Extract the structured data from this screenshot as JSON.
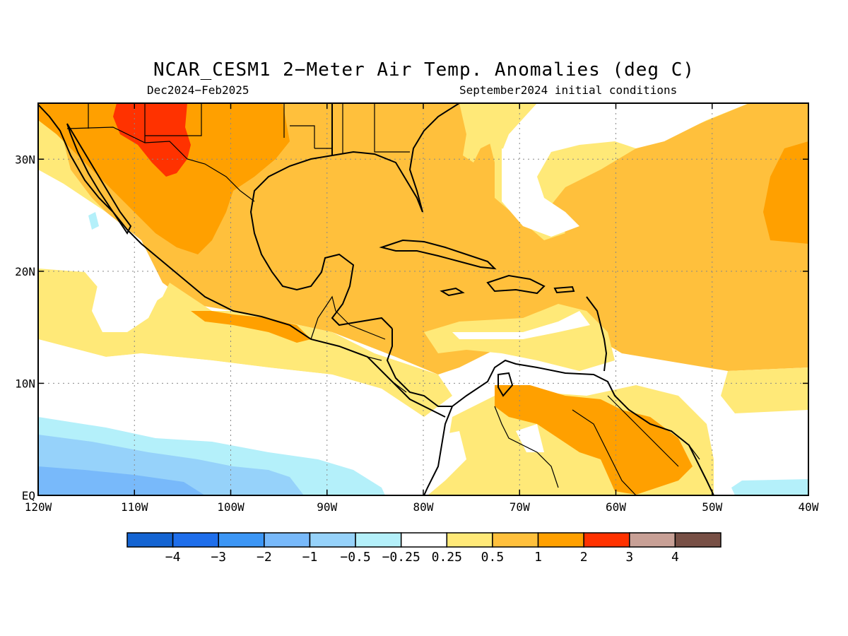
{
  "title": "NCAR_CESM1 2−Meter Air Temp. Anomalies (deg C)",
  "subtitle_left": "Dec2024−Feb2025",
  "subtitle_right": "September2024 initial conditions",
  "map": {
    "lon_range": [
      -120,
      -40
    ],
    "lat_range": [
      0,
      35
    ],
    "grid": true,
    "lat_ticks": [
      {
        "value": 30,
        "label": "30N"
      },
      {
        "value": 20,
        "label": "20N"
      },
      {
        "value": 10,
        "label": "10N"
      },
      {
        "value": 0,
        "label": "EQ"
      }
    ],
    "lon_ticks": [
      {
        "value": -120,
        "label": "120W"
      },
      {
        "value": -110,
        "label": "110W"
      },
      {
        "value": -100,
        "label": "100W"
      },
      {
        "value": -90,
        "label": "90W"
      },
      {
        "value": -80,
        "label": "80W"
      },
      {
        "value": -70,
        "label": "70W"
      },
      {
        "value": -60,
        "label": "60W"
      },
      {
        "value": -50,
        "label": "50W"
      },
      {
        "value": -40,
        "label": "40W"
      }
    ]
  },
  "colorbar": {
    "colors": [
      "#1464d2",
      "#1e6eeb",
      "#3c96f5",
      "#78b9fa",
      "#96d2fa",
      "#b4f0fa",
      "#ffffff",
      "#ffe978",
      "#ffc03c",
      "#ffa000",
      "#ff3200",
      "#c8a096",
      "#785046"
    ],
    "labels": [
      "−4",
      "−3",
      "−2",
      "−1",
      "−0.5",
      "−0.25",
      "0.25",
      "0.5",
      "1",
      "2",
      "3",
      "4"
    ]
  }
}
